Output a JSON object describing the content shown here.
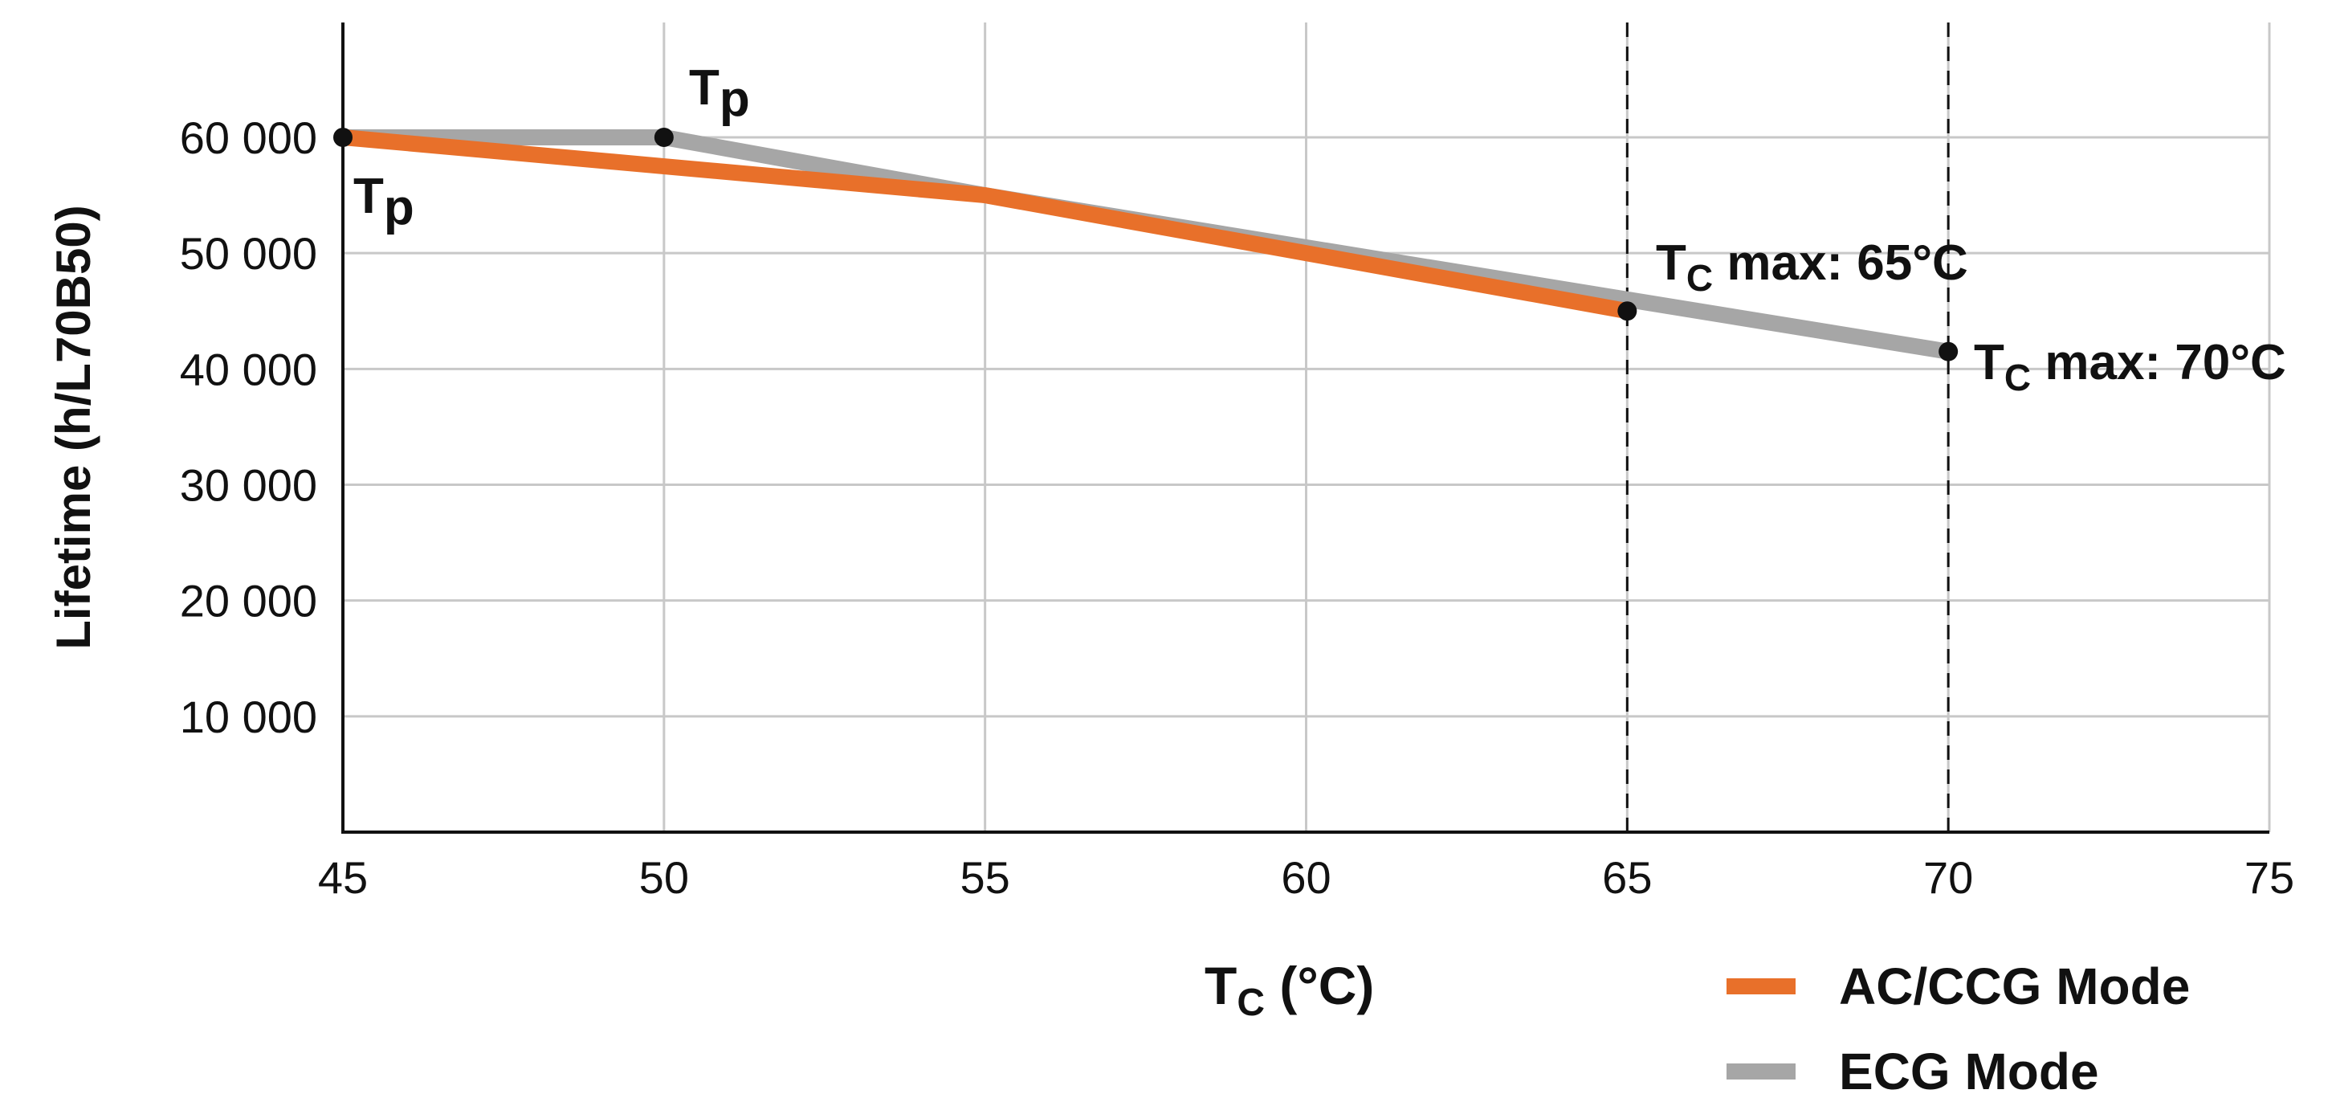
{
  "chart_data": {
    "type": "line",
    "xlabel": {
      "main": "T",
      "sub": "C",
      "rest": " (°C)"
    },
    "ylabel": "Lifetime (h/L70B50)",
    "xlim": [
      45,
      75
    ],
    "ylim": [
      0,
      70000
    ],
    "x_ticks": [
      "45",
      "50",
      "55",
      "60",
      "65",
      "70",
      "75"
    ],
    "y_ticks": [
      {
        "value": 10000,
        "label": "10 000"
      },
      {
        "value": 20000,
        "label": "20 000"
      },
      {
        "value": 30000,
        "label": "30 000"
      },
      {
        "value": 40000,
        "label": "40 000"
      },
      {
        "value": 50000,
        "label": "50 000"
      },
      {
        "value": 60000,
        "label": "60 000"
      }
    ],
    "grid": true,
    "legend_placement": "bottom-right",
    "series": [
      {
        "name": "ECG Mode",
        "color": "#a6a6a6",
        "x": [
          45,
          50,
          55,
          60,
          65,
          70
        ],
        "y": [
          60000,
          60000,
          55000,
          50500,
          46000,
          41500
        ]
      },
      {
        "name": "AC/CCG Mode",
        "color": "#e8702a",
        "x": [
          45,
          50,
          55,
          60,
          65
        ],
        "y": [
          60000,
          57500,
          55000,
          50000,
          45000
        ]
      }
    ],
    "markers": [
      {
        "x": 45,
        "y": 60000
      },
      {
        "x": 50,
        "y": 60000
      },
      {
        "x": 65,
        "y": 45000
      },
      {
        "x": 70,
        "y": 41500
      }
    ],
    "vlines": [
      65,
      70
    ],
    "annotations": [
      {
        "main": "T",
        "sub": "p",
        "rest": ""
      },
      {
        "main": "T",
        "sub": "p",
        "rest": ""
      },
      {
        "main": "T",
        "sub": "C",
        "rest": " max: 65°C"
      },
      {
        "main": "T",
        "sub": "C",
        "rest": " max: 70°C"
      }
    ],
    "legend": [
      "AC/CCG Mode",
      "ECG Mode"
    ]
  }
}
